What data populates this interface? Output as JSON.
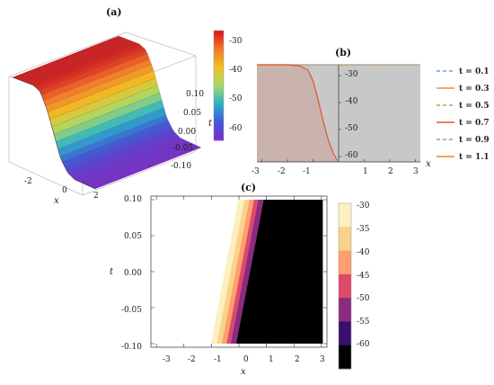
{
  "panel_labels": [
    "(a)",
    "(b)",
    "(c)"
  ],
  "colors": {
    "surface_palette": [
      "#d7191c",
      "#f47a2b",
      "#f2c021",
      "#a6d96a",
      "#2bb3c9",
      "#3f5bd6",
      "#7a2bd0"
    ],
    "contour_palette": [
      "#000000",
      "#3b0f70",
      "#8c2981",
      "#de4968",
      "#fe9f6d",
      "#f9d38a",
      "#fdf0c0"
    ],
    "panel_b_background": "#c8c8c8",
    "panel_b_shaded": "#c9b3ac"
  },
  "chart_data": [
    {
      "id": "a",
      "type": "surface",
      "title": "(a)",
      "xlabel": "x",
      "ylabel": "t",
      "x_ticks": [
        "-2",
        "0",
        "2"
      ],
      "t_ticks": [
        "0.10",
        "0.05",
        "0.00",
        "-0.05",
        "-0.10"
      ],
      "colorbar_ticks": [
        "-30",
        "-40",
        "-50",
        "-60"
      ],
      "zlim": [
        -64,
        -27
      ],
      "profile": {
        "x": [
          -3,
          -1.5,
          -1,
          -0.5,
          0,
          0.5,
          1,
          1.5,
          3
        ],
        "z": [
          -27,
          -27.3,
          -29,
          -36,
          -46,
          -56,
          -61,
          -63,
          -64
        ]
      }
    },
    {
      "id": "b",
      "type": "line",
      "title": "(b)",
      "xlabel": "x",
      "xlim": [
        -3.2,
        3.2
      ],
      "ylim": [
        -62,
        -26
      ],
      "x_ticks": [
        "-3",
        "-2",
        "-1",
        "1",
        "2",
        "3"
      ],
      "y_ticks": [
        "-30",
        "-40",
        "-50",
        "-60"
      ],
      "series": [
        {
          "name": "t = 0.1",
          "color": "#6fa8dc",
          "dash": "dash"
        },
        {
          "name": "t = 0.3",
          "color": "#e69138",
          "dash": "solid"
        },
        {
          "name": "t = 0.5",
          "color": "#93b84b",
          "dash": "dash"
        },
        {
          "name": "t = 0.7",
          "color": "#e0572b",
          "dash": "solid"
        },
        {
          "name": "t = 0.9",
          "color": "#8d9db8",
          "dash": "dash"
        },
        {
          "name": "t = 1.1",
          "color": "#e8852f",
          "dash": "solid"
        }
      ],
      "curve": {
        "x": [
          -3.2,
          -2,
          -1.5,
          -1.2,
          -1,
          -0.8,
          -0.6,
          -0.4,
          -0.2,
          -0.05
        ],
        "y": [
          -26,
          -26,
          -26.5,
          -28,
          -32,
          -39,
          -47,
          -54,
          -59,
          -61.5
        ]
      },
      "top_level": -26
    },
    {
      "id": "c",
      "type": "contour",
      "title": "(c)",
      "xlabel": "x",
      "ylabel": "t",
      "xlim": [
        -3.2,
        3.2
      ],
      "ylim": [
        -0.105,
        0.105
      ],
      "x_ticks": [
        "-3",
        "-2",
        "-1",
        "0",
        "1",
        "2",
        "3"
      ],
      "y_ticks": [
        "0.10",
        "0.05",
        "0.00",
        "-0.05",
        "-0.10"
      ],
      "colorbar_ticks": [
        "-30",
        "-35",
        "-40",
        "-45",
        "-50",
        "-55",
        "-60"
      ],
      "bands": [
        {
          "x_bottom": -1.02,
          "x_top": -0.02
        },
        {
          "x_bottom": -0.8,
          "x_top": 0.2
        },
        {
          "x_bottom": -0.62,
          "x_top": 0.38
        },
        {
          "x_bottom": -0.45,
          "x_top": 0.55
        },
        {
          "x_bottom": -0.3,
          "x_top": 0.7
        },
        {
          "x_bottom": -0.1,
          "x_top": 0.9
        }
      ]
    }
  ]
}
